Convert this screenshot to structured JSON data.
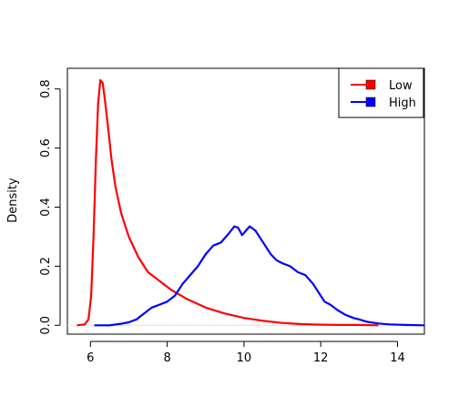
{
  "chart_data": {
    "type": "line",
    "title": "",
    "xlabel": "",
    "ylabel": "Density",
    "xlim": [
      5.4,
      14.7
    ],
    "ylim": [
      -0.03,
      0.87
    ],
    "xticks": [
      6,
      8,
      10,
      12,
      14
    ],
    "yticks": [
      0.0,
      0.2,
      0.4,
      0.6,
      0.8
    ],
    "ytick_labels": [
      "0.0",
      "0.2",
      "0.4",
      "0.6",
      "0.8"
    ],
    "grid": false,
    "legend_position": "top-right",
    "series": [
      {
        "name": "Low",
        "color": "#ff0000",
        "points": [
          [
            5.65,
            0.0
          ],
          [
            5.85,
            0.003
          ],
          [
            5.95,
            0.02
          ],
          [
            6.02,
            0.1
          ],
          [
            6.08,
            0.3
          ],
          [
            6.14,
            0.55
          ],
          [
            6.2,
            0.75
          ],
          [
            6.26,
            0.83
          ],
          [
            6.32,
            0.82
          ],
          [
            6.38,
            0.76
          ],
          [
            6.45,
            0.68
          ],
          [
            6.55,
            0.56
          ],
          [
            6.65,
            0.47
          ],
          [
            6.8,
            0.38
          ],
          [
            7.0,
            0.3
          ],
          [
            7.25,
            0.23
          ],
          [
            7.5,
            0.18
          ],
          [
            7.8,
            0.15
          ],
          [
            8.1,
            0.12
          ],
          [
            8.5,
            0.09
          ],
          [
            9.0,
            0.06
          ],
          [
            9.5,
            0.04
          ],
          [
            10.0,
            0.025
          ],
          [
            10.5,
            0.015
          ],
          [
            11.0,
            0.008
          ],
          [
            11.5,
            0.004
          ],
          [
            12.0,
            0.002
          ],
          [
            12.5,
            0.001
          ],
          [
            13.0,
            0.001
          ],
          [
            13.5,
            0.0
          ]
        ]
      },
      {
        "name": "High",
        "color": "#0000ff",
        "points": [
          [
            6.1,
            0.0
          ],
          [
            6.5,
            0.0
          ],
          [
            6.8,
            0.005
          ],
          [
            7.0,
            0.01
          ],
          [
            7.2,
            0.02
          ],
          [
            7.4,
            0.04
          ],
          [
            7.6,
            0.06
          ],
          [
            7.8,
            0.07
          ],
          [
            8.0,
            0.08
          ],
          [
            8.2,
            0.1
          ],
          [
            8.4,
            0.14
          ],
          [
            8.6,
            0.17
          ],
          [
            8.8,
            0.2
          ],
          [
            9.0,
            0.24
          ],
          [
            9.2,
            0.27
          ],
          [
            9.4,
            0.28
          ],
          [
            9.6,
            0.31
          ],
          [
            9.75,
            0.335
          ],
          [
            9.85,
            0.33
          ],
          [
            9.95,
            0.305
          ],
          [
            10.05,
            0.32
          ],
          [
            10.15,
            0.335
          ],
          [
            10.3,
            0.32
          ],
          [
            10.45,
            0.29
          ],
          [
            10.6,
            0.26
          ],
          [
            10.7,
            0.24
          ],
          [
            10.85,
            0.22
          ],
          [
            11.0,
            0.21
          ],
          [
            11.2,
            0.2
          ],
          [
            11.4,
            0.18
          ],
          [
            11.6,
            0.17
          ],
          [
            11.8,
            0.14
          ],
          [
            11.95,
            0.11
          ],
          [
            12.1,
            0.08
          ],
          [
            12.25,
            0.07
          ],
          [
            12.45,
            0.05
          ],
          [
            12.65,
            0.035
          ],
          [
            12.85,
            0.025
          ],
          [
            13.0,
            0.02
          ],
          [
            13.2,
            0.012
          ],
          [
            13.5,
            0.006
          ],
          [
            13.8,
            0.003
          ],
          [
            14.2,
            0.001
          ],
          [
            14.7,
            0.0
          ]
        ]
      }
    ]
  }
}
